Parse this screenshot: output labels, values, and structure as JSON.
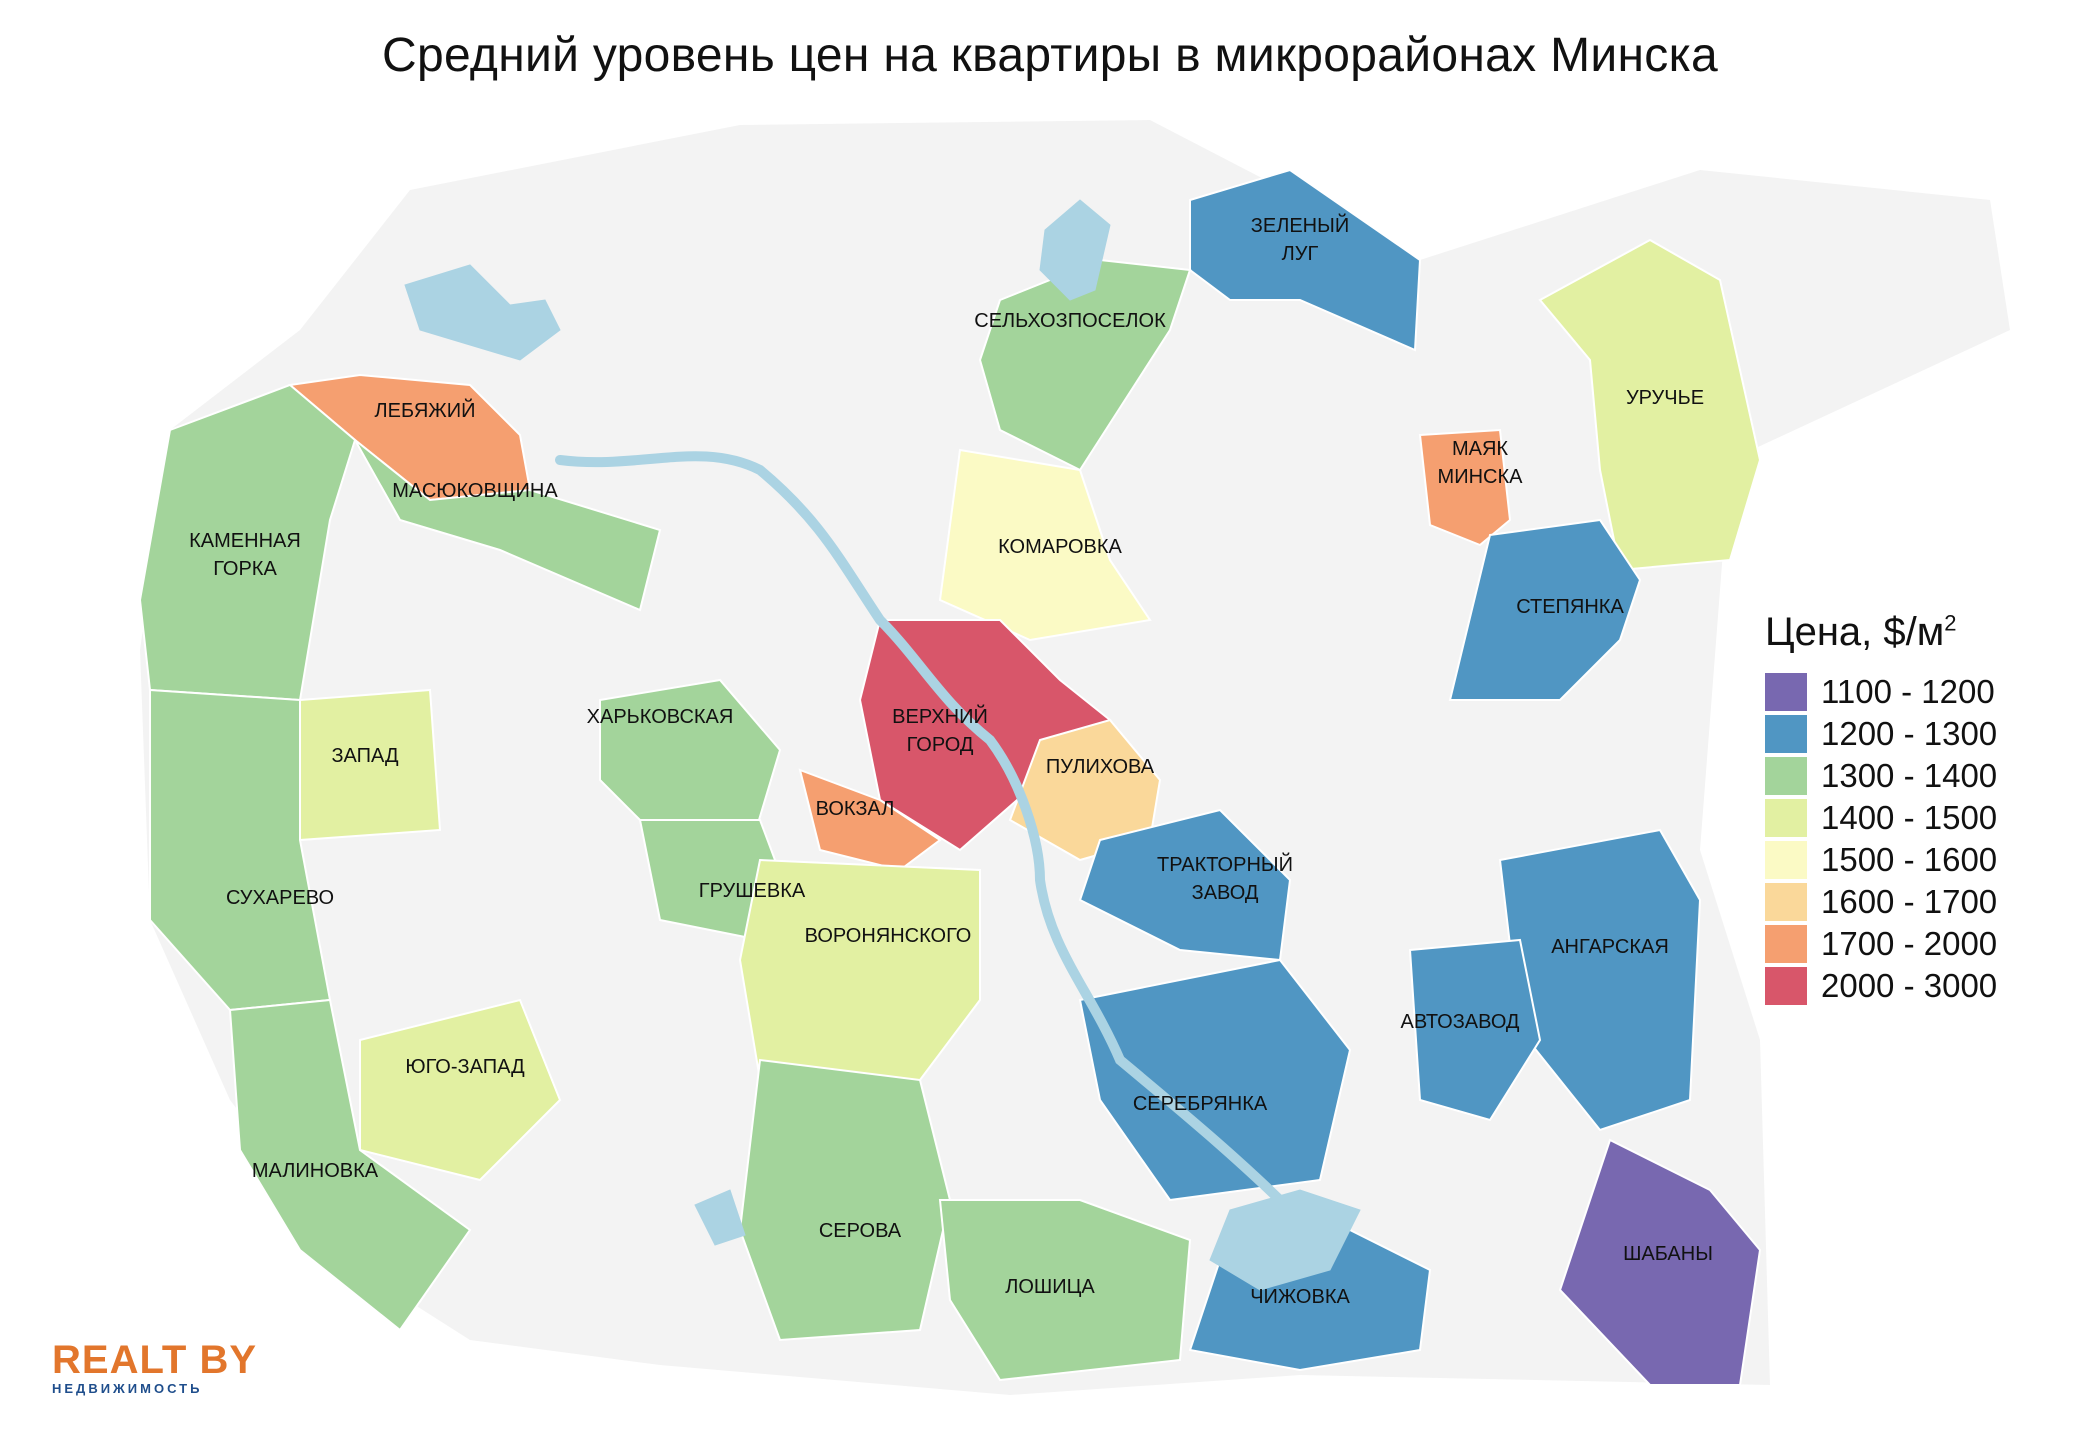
{
  "title": "Средний уровень цен на квартиры в микрорайонах Минска",
  "legend": {
    "title": "Цена, $/м",
    "title_sup": "2",
    "items": [
      {
        "label": "1100 - 1200",
        "color": "#7868b0"
      },
      {
        "label": "1200 - 1300",
        "color": "#5096c3"
      },
      {
        "label": "1300 - 1400",
        "color": "#a3d49b"
      },
      {
        "label": "1400 - 1500",
        "color": "#e2f0a2"
      },
      {
        "label": "1500 - 1600",
        "color": "#fbfac5"
      },
      {
        "label": "1600 - 1700",
        "color": "#fad89a"
      },
      {
        "label": "1700 - 2000",
        "color": "#f59f70"
      },
      {
        "label": "2000 - 3000",
        "color": "#d8566a"
      }
    ]
  },
  "colors": {
    "background_city": "#f3f3f3",
    "water": "#abd3e3",
    "logo_orange": "#e2762c",
    "logo_blue": "#1f4e8c"
  },
  "districts": [
    {
      "name": "ЗЕЛЕНЫЙ",
      "name2": "ЛУГ",
      "price_range": "1200 - 1300"
    },
    {
      "name": "СЕЛЬХОЗПОСЕЛОК",
      "price_range": "1300 - 1400"
    },
    {
      "name": "УРУЧЬЕ",
      "price_range": "1400 - 1500"
    },
    {
      "name": "ЛЕБЯЖИЙ",
      "price_range": "1700 - 2000"
    },
    {
      "name": "МАЯК",
      "name2": "МИНСКА",
      "price_range": "1700 - 2000"
    },
    {
      "name": "МАСЮКОВЩИНА",
      "price_range": "1300 - 1400"
    },
    {
      "name": "КАМЕННАЯ",
      "name2": "ГОРКА",
      "price_range": "1300 - 1400"
    },
    {
      "name": "КОМАРОВКА",
      "price_range": "1500 - 1600"
    },
    {
      "name": "СТЕПЯНКА",
      "price_range": "1200 - 1300"
    },
    {
      "name": "ВЕРХНИЙ",
      "name2": "ГОРОД",
      "price_range": "2000 - 3000"
    },
    {
      "name": "ХАРЬКОВСКАЯ",
      "price_range": "1300 - 1400"
    },
    {
      "name": "ЗАПАД",
      "price_range": "1400 - 1500"
    },
    {
      "name": "ПУЛИХОВА",
      "price_range": "1600 - 1700"
    },
    {
      "name": "ВОКЗАЛ",
      "price_range": "1700 - 2000"
    },
    {
      "name": "ТРАКТОРНЫЙ",
      "name2": "ЗАВОД",
      "price_range": "1200 - 1300"
    },
    {
      "name": "СУХАРЕВО",
      "price_range": "1300 - 1400"
    },
    {
      "name": "ГРУШЕВКА",
      "price_range": "1300 - 1400"
    },
    {
      "name": "ВОРОНЯНСКОГО",
      "price_range": "1400 - 1500"
    },
    {
      "name": "АНГАРСКАЯ",
      "price_range": "1200 - 1300"
    },
    {
      "name": "АВТОЗАВОД",
      "price_range": "1200 - 1300"
    },
    {
      "name": "ЮГО-ЗАПАД",
      "price_range": "1400 - 1500"
    },
    {
      "name": "СЕРЕБРЯНКА",
      "price_range": "1200 - 1300"
    },
    {
      "name": "МАЛИНОВКА",
      "price_range": "1300 - 1400"
    },
    {
      "name": "ШАБАНЫ",
      "price_range": "1100 - 1200"
    },
    {
      "name": "СЕРОВА",
      "price_range": "1300 - 1400"
    },
    {
      "name": "ЛОШИЦА",
      "price_range": "1300 - 1400"
    },
    {
      "name": "ЧИЖОВКА",
      "price_range": "1200 - 1300"
    }
  ],
  "logo": {
    "main": "REALT BY",
    "sub": "НЕДВИЖИМОСТЬ"
  }
}
